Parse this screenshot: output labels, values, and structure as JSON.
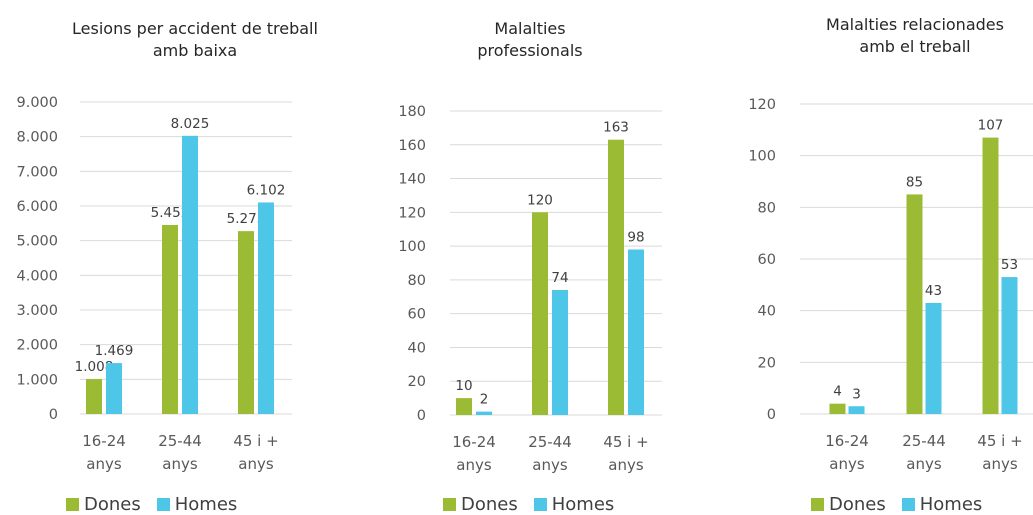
{
  "colors": {
    "dones": "#9bbb34",
    "homes": "#4ec6e8",
    "grid": "#d9d9d9"
  },
  "legend": {
    "dones": "Dones",
    "homes": "Homes"
  },
  "chart_data": [
    {
      "type": "bar",
      "title": [
        "Lesions per accident de treball",
        "amb baixa"
      ],
      "categories": [
        [
          "16-24",
          "anys"
        ],
        [
          "25-44",
          "anys"
        ],
        [
          "45 i +",
          "anys"
        ]
      ],
      "series": [
        {
          "name": "Dones",
          "values": [
            1008,
            5452,
            5275
          ],
          "labels": [
            "1.008",
            "5.452",
            "5.275"
          ]
        },
        {
          "name": "Homes",
          "values": [
            1469,
            8025,
            6102
          ],
          "labels": [
            "1.469",
            "8.025",
            "6.102"
          ]
        }
      ],
      "ylim": [
        0,
        9000
      ],
      "yticks": [
        0,
        1000,
        2000,
        3000,
        4000,
        5000,
        6000,
        7000,
        8000,
        9000
      ],
      "yticklabels": [
        "0",
        "1.000",
        "2.000",
        "3.000",
        "4.000",
        "5.000",
        "6.000",
        "7.000",
        "8.000",
        "9.000"
      ],
      "grid": true,
      "legend_position": "bottom"
    },
    {
      "type": "bar",
      "title": [
        "Malalties",
        "professionals"
      ],
      "categories": [
        [
          "16-24",
          "anys"
        ],
        [
          "25-44",
          "anys"
        ],
        [
          "45 i +",
          "anys"
        ]
      ],
      "series": [
        {
          "name": "Dones",
          "values": [
            10,
            120,
            163
          ],
          "labels": [
            "10",
            "120",
            "163"
          ]
        },
        {
          "name": "Homes",
          "values": [
            2,
            74,
            98
          ],
          "labels": [
            "2",
            "74",
            "98"
          ]
        }
      ],
      "ylim": [
        0,
        180
      ],
      "yticks": [
        0,
        20,
        40,
        60,
        80,
        100,
        120,
        140,
        160,
        180
      ],
      "yticklabels": [
        "0",
        "20",
        "40",
        "60",
        "80",
        "100",
        "120",
        "140",
        "160",
        "180"
      ],
      "grid": true,
      "legend_position": "bottom"
    },
    {
      "type": "bar",
      "title": [
        "Malalties relacionades",
        "amb el treball"
      ],
      "categories": [
        [
          "16-24",
          "anys"
        ],
        [
          "25-44",
          "anys"
        ],
        [
          "45 i +",
          "anys"
        ]
      ],
      "series": [
        {
          "name": "Dones",
          "values": [
            4,
            85,
            107
          ],
          "labels": [
            "4",
            "85",
            "107"
          ]
        },
        {
          "name": "Homes",
          "values": [
            3,
            43,
            53
          ],
          "labels": [
            "3",
            "43",
            "53"
          ]
        }
      ],
      "ylim": [
        0,
        120
      ],
      "yticks": [
        0,
        20,
        40,
        60,
        80,
        100,
        120
      ],
      "yticklabels": [
        "0",
        "20",
        "40",
        "60",
        "80",
        "100",
        "120"
      ],
      "grid": true,
      "legend_position": "bottom"
    }
  ]
}
